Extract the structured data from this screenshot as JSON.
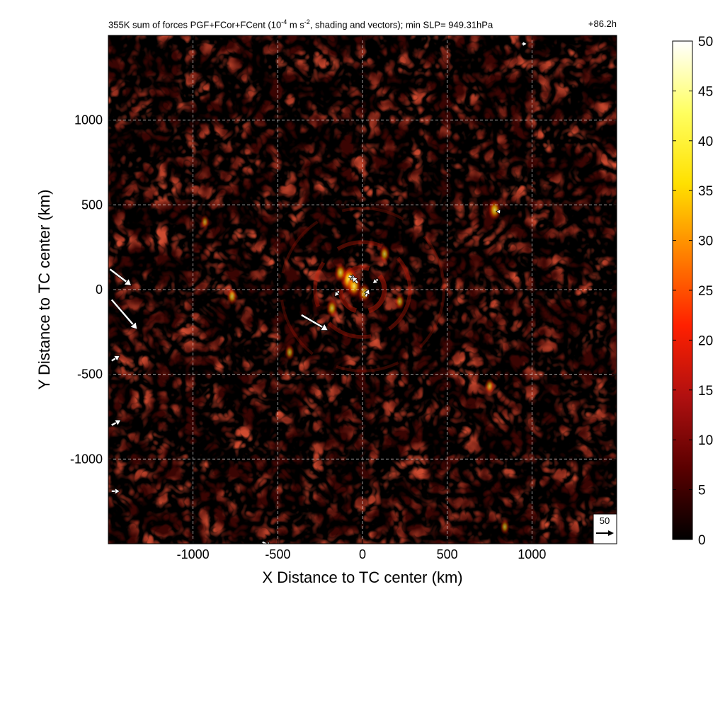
{
  "title": {
    "prefix": "355K sum of forces PGF+FCor+FCent (10",
    "exponent1": "-4",
    "middle": " m s",
    "exponent2": "-2",
    "suffix": ", shading and vectors); min SLP= 949.31hPa",
    "time": "+86.2h"
  },
  "chart_data": {
    "type": "heatmap",
    "title": "355K sum of forces PGF+FCor+FCent (10^-4 m s^-2, shading and vectors); min SLP= 949.31hPa",
    "time_label": "+86.2h",
    "xlabel": "X Distance to TC center (km)",
    "ylabel": "Y Distance to TC center (km)",
    "xlim": [
      -1500,
      1500
    ],
    "ylim": [
      -1500,
      1500
    ],
    "xticks": [
      -1000,
      -500,
      0,
      500,
      1000
    ],
    "yticks": [
      -1000,
      -500,
      0,
      500,
      1000
    ],
    "grid": true,
    "colorbar": {
      "min": 0,
      "max": 50,
      "ticks": [
        0,
        5,
        10,
        15,
        20,
        25,
        30,
        35,
        40,
        45,
        50
      ],
      "colormap": [
        "#000000",
        "#5a0000",
        "#b01010",
        "#ff2000",
        "#ff8000",
        "#ffe000",
        "#ffff60",
        "#ffffff"
      ]
    },
    "reference_vector": {
      "label": "50",
      "magnitude": 50
    },
    "hotspots": [
      {
        "x": -80,
        "y": 60,
        "value": 34
      },
      {
        "x": -50,
        "y": 20,
        "value": 28
      },
      {
        "x": 10,
        "y": -20,
        "value": 22
      },
      {
        "x": -180,
        "y": -110,
        "value": 20
      },
      {
        "x": -130,
        "y": 100,
        "value": 22
      },
      {
        "x": 780,
        "y": 470,
        "value": 24
      },
      {
        "x": -770,
        "y": -40,
        "value": 18
      },
      {
        "x": 130,
        "y": 210,
        "value": 18
      },
      {
        "x": 220,
        "y": -70,
        "value": 16
      },
      {
        "x": -430,
        "y": -370,
        "value": 15
      },
      {
        "x": 750,
        "y": -570,
        "value": 15
      },
      {
        "x": 840,
        "y": -1400,
        "value": 14
      },
      {
        "x": -930,
        "y": 400,
        "value": 12
      }
    ],
    "vectors": [
      {
        "x": -1490,
        "y": 120,
        "u": 42,
        "v": -32
      },
      {
        "x": -1480,
        "y": -60,
        "u": 50,
        "v": -58
      },
      {
        "x": -360,
        "y": -150,
        "u": 52,
        "v": -30
      },
      {
        "x": -80,
        "y": 80,
        "u": 14,
        "v": -6
      },
      {
        "x": -30,
        "y": 40,
        "u": -10,
        "v": 12
      },
      {
        "x": 20,
        "y": -40,
        "u": 6,
        "v": 14
      },
      {
        "x": -140,
        "y": -10,
        "u": -8,
        "v": -10
      },
      {
        "x": 90,
        "y": 60,
        "u": -10,
        "v": -8
      },
      {
        "x": -1480,
        "y": -420,
        "u": 16,
        "v": 10
      },
      {
        "x": -1480,
        "y": -800,
        "u": 18,
        "v": 10
      },
      {
        "x": -1480,
        "y": -1190,
        "u": 16,
        "v": 0
      },
      {
        "x": -590,
        "y": -1490,
        "u": 18,
        "v": -10
      },
      {
        "x": 940,
        "y": 1450,
        "u": 10,
        "v": 0
      },
      {
        "x": 800,
        "y": 470,
        "u": 4,
        "v": -8
      }
    ],
    "ring_radii_km": [
      130,
      280,
      480
    ]
  },
  "axes": {
    "xlabel": "X Distance to TC center (km)",
    "ylabel": "Y Distance to TC center (km)"
  }
}
